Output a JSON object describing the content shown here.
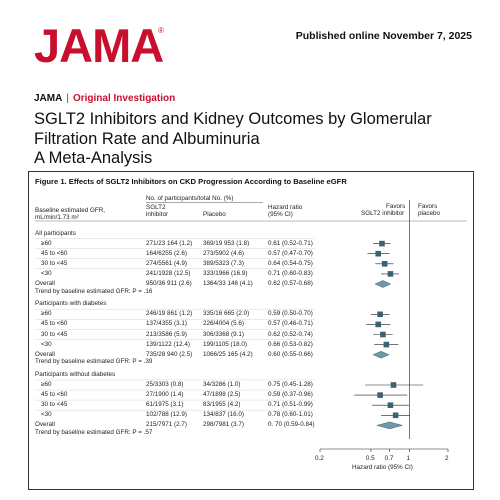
{
  "header": {
    "logo": "JAMA",
    "logo_mark": "®",
    "published": "Published online November 7, 2025"
  },
  "article": {
    "journal": "JAMA",
    "separator": "|",
    "section": "Original Investigation",
    "title": "SGLT2 Inhibitors and Kidney Outcomes by Glomerular Filtration Rate and Albuminuria",
    "subtitle": "A Meta-Analysis"
  },
  "figure": {
    "title": "Figure 1. Effects of SGLT2 Inhibitors on CKD Progression According to Baseline eGFR",
    "col_span_header": "No. of participants/total No. (%)",
    "col_egfr_1": "Baseline estimated GFR,",
    "col_egfr_2": "mL/min/1.73 m²",
    "col_sglt2_1": "SGLT2",
    "col_sglt2_2": "inhibitor",
    "col_placebo": "Placebo",
    "col_hr_1": "Hazard ratio",
    "col_hr_2": "(95% CI)",
    "favors_left_1": "Favors",
    "favors_left_2": "SGLT2 inhibitor",
    "favors_right_1": "Favors",
    "favors_right_2": "placebo"
  },
  "chart_data": {
    "type": "forest",
    "x_scale": "log",
    "xlabel": "Hazard ratio (95% CI)",
    "xticks": [
      "0.2",
      "0.5",
      "0.7",
      "1",
      "2"
    ],
    "reference_line": 1,
    "groups": [
      {
        "label": "All participants",
        "rows": [
          {
            "label": "≥60",
            "sglt2": "271/23 164 (1.2)",
            "placebo": "369/19 953 (1.8)",
            "hr_text": "0.61 (0.52-0.71)",
            "hr": 0.61,
            "lo": 0.52,
            "hi": 0.71
          },
          {
            "label": "45 to <60",
            "sglt2": "164/6255 (2.6)",
            "placebo": "273/5902 (4.6)",
            "hr_text": "0.57 (0.47-0.70)",
            "hr": 0.57,
            "lo": 0.47,
            "hi": 0.7
          },
          {
            "label": "30 to <45",
            "sglt2": "274/5561 (4.9)",
            "placebo": "389/5323 (7.3)",
            "hr_text": "0.64 (0.54-0.75)",
            "hr": 0.64,
            "lo": 0.54,
            "hi": 0.75
          },
          {
            "label": "<30",
            "sglt2": "241/1928 (12.5)",
            "placebo": "333/1966 (16.9)",
            "hr_text": "0.71 (0.60-0.83)",
            "hr": 0.71,
            "lo": 0.6,
            "hi": 0.83
          },
          {
            "label": "Overall",
            "sglt2": "950/36 911 (2.6)",
            "placebo": "1364/33 146 (4.1)",
            "hr_text": "0.62 (0.57-0.68)",
            "hr": 0.62,
            "lo": 0.57,
            "hi": 0.68,
            "overall": true
          }
        ],
        "trend": "Trend by baseline estimated GFR: P = .16"
      },
      {
        "label": "Participants with diabetes",
        "rows": [
          {
            "label": "≥60",
            "sglt2": "246/19 861 (1.2)",
            "placebo": "335/16 665 (2.0)",
            "hr_text": "0.59 (0.50-0.70)",
            "hr": 0.59,
            "lo": 0.5,
            "hi": 0.7
          },
          {
            "label": "45 to <60",
            "sglt2": "137/4355 (3.1)",
            "placebo": "226/4004 (5.6)",
            "hr_text": "0.57 (0.46-0.71)",
            "hr": 0.57,
            "lo": 0.46,
            "hi": 0.71
          },
          {
            "label": "30 to <45",
            "sglt2": "213/3586 (5.9)",
            "placebo": "306/3368 (9.1)",
            "hr_text": "0.62 (0.52-0.74)",
            "hr": 0.62,
            "lo": 0.52,
            "hi": 0.74
          },
          {
            "label": "<30",
            "sglt2": "139/1122 (12.4)",
            "placebo": "199/1105 (18.0)",
            "hr_text": "0.66 (0.53-0.82)",
            "hr": 0.66,
            "lo": 0.53,
            "hi": 0.82
          },
          {
            "label": "Overall",
            "sglt2": "735/28 940 (2.5)",
            "placebo": "1066/25 165 (4.2)",
            "hr_text": "0.60 (0.55-0.66)",
            "hr": 0.6,
            "lo": 0.55,
            "hi": 0.66,
            "overall": true
          }
        ],
        "trend": "Trend by baseline estimated GFR: P = .39"
      },
      {
        "label": "Participants without diabetes",
        "rows": [
          {
            "label": "≥60",
            "sglt2": "25/3303 (0.8)",
            "placebo": "34/3286 (1.0)",
            "hr_text": "0.75 (0.45-1.28)",
            "hr": 0.75,
            "lo": 0.45,
            "hi": 1.28
          },
          {
            "label": "45 to <60",
            "sglt2": "27/1900 (1.4)",
            "placebo": "47/1898 (2.5)",
            "hr_text": "0.59 (0.37-0.96)",
            "hr": 0.59,
            "lo": 0.37,
            "hi": 0.96
          },
          {
            "label": "30 to <45",
            "sglt2": "61/1975 (3.1)",
            "placebo": "83/1955 (4.2)",
            "hr_text": "0.71 (0.51-0.99)",
            "hr": 0.71,
            "lo": 0.51,
            "hi": 0.99
          },
          {
            "label": "<30",
            "sglt2": "102/788 (12.9)",
            "placebo": "134/837 (16.0)",
            "hr_text": "0.78 (0.60-1.01)",
            "hr": 0.78,
            "lo": 0.6,
            "hi": 1.01
          },
          {
            "label": "Overall",
            "sglt2": "215/7971 (2.7)",
            "placebo": "298/7981 (3.7)",
            "hr_text": "0. 70 (0.59-0.84)",
            "hr": 0.7,
            "lo": 0.59,
            "hi": 0.84,
            "overall": true
          }
        ],
        "trend": "Trend by baseline estimated GFR: P = .57"
      }
    ],
    "colors": {
      "marker": "#3b6274",
      "diamond": "#6f98a8",
      "ci": "#222222",
      "rule": "#999999"
    }
  }
}
